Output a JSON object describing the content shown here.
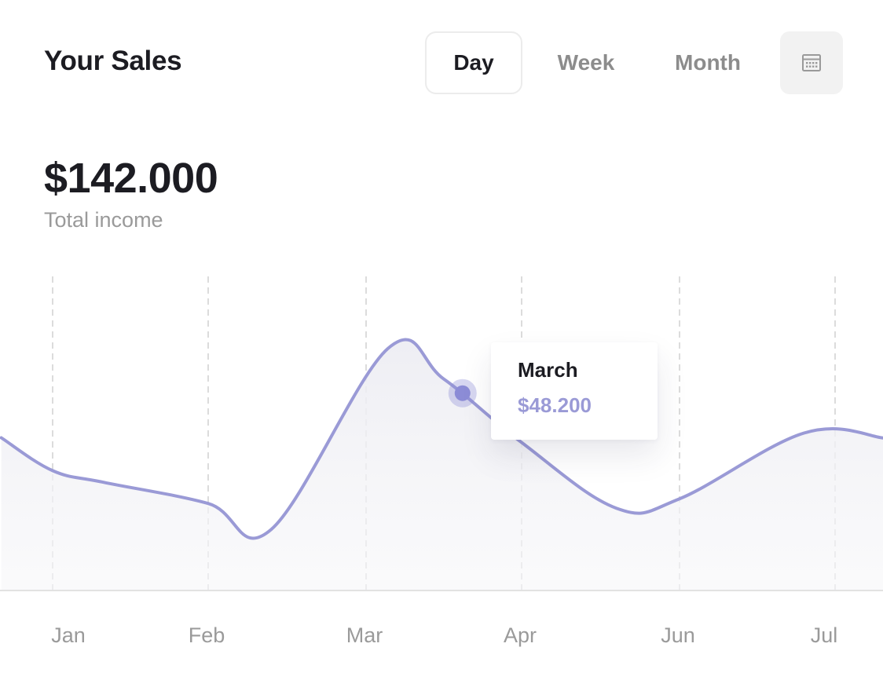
{
  "header": {
    "title": "Your Sales",
    "tabs": [
      {
        "label": "Day",
        "active": true
      },
      {
        "label": "Week",
        "active": false
      },
      {
        "label": "Month",
        "active": false
      }
    ],
    "calendar_icon": "calendar-icon"
  },
  "summary": {
    "total": "$142.000",
    "label": "Total income"
  },
  "tooltip": {
    "label": "March",
    "value": "$48.200"
  },
  "colors": {
    "line": "#9a9ad6",
    "marker": "#8c8cd6",
    "grid": "#dcdcdc",
    "axis_text": "#9a9a9a"
  },
  "chart_data": {
    "type": "area",
    "categories": [
      "Jan",
      "Feb",
      "Mar",
      "Apr",
      "Jun",
      "Jul"
    ],
    "series": [
      {
        "points": [
          [
            -0.33,
            0.5
          ],
          [
            0,
            0.36
          ],
          [
            0.33,
            0.31
          ],
          [
            1,
            0.22
          ],
          [
            1.4,
            0.11
          ],
          [
            2.14,
            0.88
          ],
          [
            2.5,
            0.75
          ],
          [
            3,
            0.48
          ],
          [
            3.6,
            0.2
          ],
          [
            4,
            0.24
          ],
          [
            4.8,
            0.52
          ],
          [
            5.3,
            0.5
          ],
          [
            5.4,
            0.46
          ]
        ]
      }
    ],
    "highlight": {
      "x": 2.62,
      "y": 0.69,
      "label": "March",
      "value": "$48.200"
    },
    "grid": {
      "vertical": true,
      "dashed": true
    },
    "ylim": [
      0,
      1
    ]
  }
}
